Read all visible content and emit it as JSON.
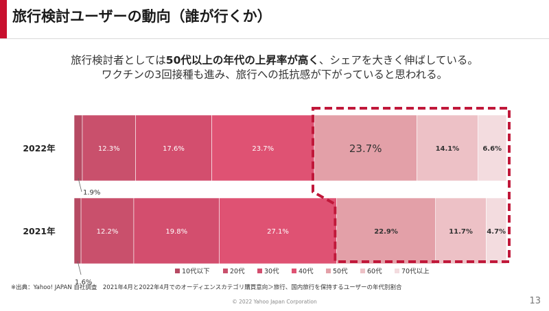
{
  "page": {
    "title": "旅行検討ユーザーの動向（誰が行くか）",
    "subtitle_line1_pre": "旅行検討者としては",
    "subtitle_line1_bold": "50代以上の年代の上昇率が高く",
    "subtitle_line1_post": "、シェアを大きく伸ばしている。",
    "subtitle_line2": "ワクチンの3回接種も進み、旅行への抵抗感が下がっていると思われる。",
    "footnote": "※出典：Yahoo! JAPAN 自社調査　2021年4月と2022年4月でのオーディエンスカテゴリ購買意向＞旅行、国内旅行を保持するユーザーの年代別割合",
    "copyright": "© 2022 Yahoo Japan Corporation",
    "page_number": "13",
    "colors": {
      "accent": "#c8102e",
      "highlight_border": "#c0183a"
    }
  },
  "chart_data": {
    "type": "bar",
    "orientation": "horizontal",
    "stacked": true,
    "normalized": true,
    "categories": [
      "2022年",
      "2021年"
    ],
    "series": [
      {
        "name": "10代以下",
        "values": [
          1.9,
          1.6
        ],
        "color": "#b64a63",
        "labels": [
          "1.9%",
          "1.6%"
        ]
      },
      {
        "name": "20代",
        "values": [
          12.3,
          12.2
        ],
        "color": "#c9506c",
        "labels": [
          "12.3%",
          "12.2%"
        ]
      },
      {
        "name": "30代",
        "values": [
          17.6,
          19.8
        ],
        "color": "#d34e6e",
        "labels": [
          "17.6%",
          "19.8%"
        ]
      },
      {
        "name": "40代",
        "values": [
          23.7,
          27.1
        ],
        "color": "#df5273",
        "labels": [
          "23.7%",
          "27.1%"
        ]
      },
      {
        "name": "50代",
        "values": [
          23.7,
          22.9
        ],
        "color": "#e3a0a8",
        "labels": [
          "23.7%",
          "22.9%"
        ]
      },
      {
        "name": "60代",
        "values": [
          14.1,
          11.7
        ],
        "color": "#edc1c6",
        "labels": [
          "14.1%",
          "11.7%"
        ]
      },
      {
        "name": "70代以上",
        "values": [
          6.6,
          4.7
        ],
        "color": "#f3dcdf",
        "labels": [
          "6.6%",
          "4.7%"
        ]
      }
    ],
    "highlight": "50代以上",
    "legend_position": "bottom"
  }
}
